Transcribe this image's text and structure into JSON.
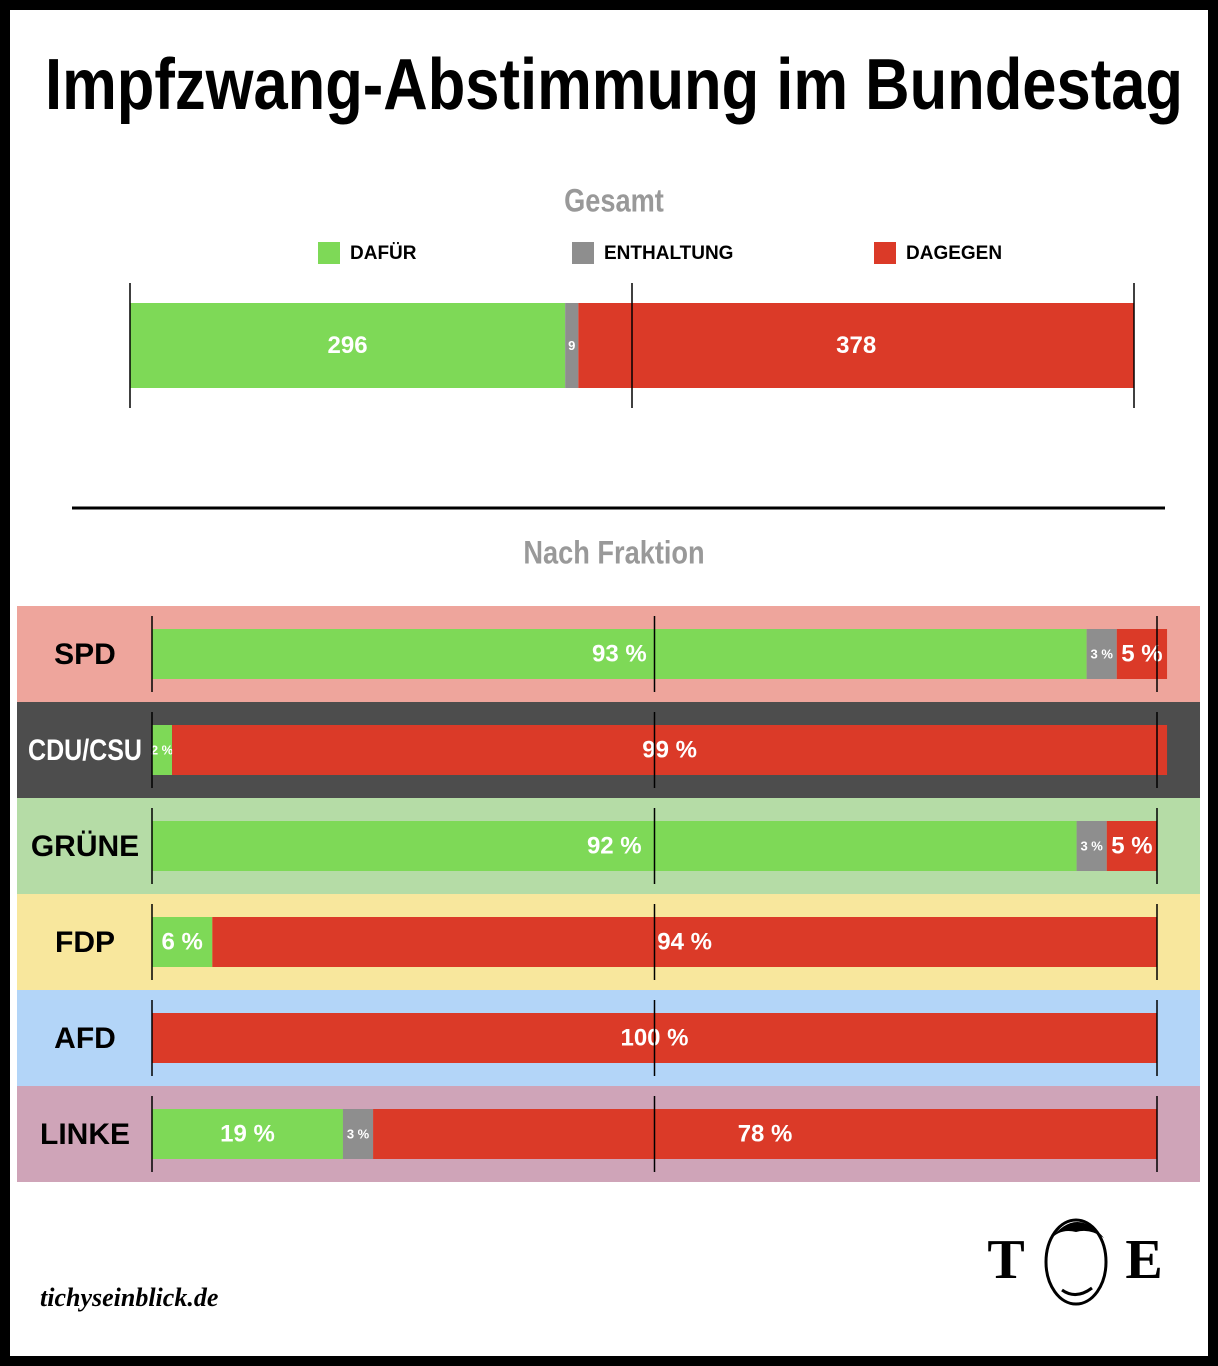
{
  "title": "Impfzwang-Abstimmung im Bundestag",
  "chart_data": [
    {
      "type": "bar",
      "stacked": true,
      "orientation": "horizontal",
      "title": "Gesamt",
      "legend": "top",
      "xlim": [
        0,
        683
      ],
      "xticks": [
        0,
        341.5,
        683
      ],
      "series": [
        {
          "name": "DAFÜR",
          "color": "#7ed957",
          "values": [
            296
          ]
        },
        {
          "name": "ENTHALTUNG",
          "color": "#8e8e8e",
          "values": [
            9
          ]
        },
        {
          "name": "DAGEGEN",
          "color": "#db3a28",
          "values": [
            378
          ]
        }
      ]
    },
    {
      "type": "bar",
      "stacked": true,
      "orientation": "horizontal",
      "title": "Nach Fraktion",
      "categories": [
        "SPD",
        "CDU/CSU",
        "GRÜNE",
        "FDP",
        "AFD",
        "LINKE"
      ],
      "category_colors": [
        "#eea59c",
        "#4d4d4d",
        "#b5dca6",
        "#f8e79d",
        "#b3d5f8",
        "#cfa4b8"
      ],
      "xlim": [
        0,
        100
      ],
      "xticks": [
        0,
        50,
        100
      ],
      "series": [
        {
          "color": "#7ed957",
          "values": [
            93,
            2,
            92,
            6,
            0,
            19
          ],
          "value_labels": [
            "93 %",
            "2 %",
            "92 %",
            "6 %",
            null,
            "19 %"
          ]
        },
        {
          "color": "#8e8e8e",
          "values": [
            3,
            0,
            3,
            0,
            0,
            3
          ],
          "value_labels": [
            "3 %",
            null,
            "3 %",
            null,
            null,
            "3 %"
          ]
        },
        {
          "color": "#db3a28",
          "values": [
            5,
            99,
            5,
            94,
            100,
            78
          ],
          "value_labels": [
            "5 %",
            "99 %",
            "5 %",
            "94 %",
            "100 %",
            "78 %"
          ]
        }
      ]
    }
  ],
  "source": "tichyseinblick.de",
  "logo": [
    "T",
    "E"
  ]
}
